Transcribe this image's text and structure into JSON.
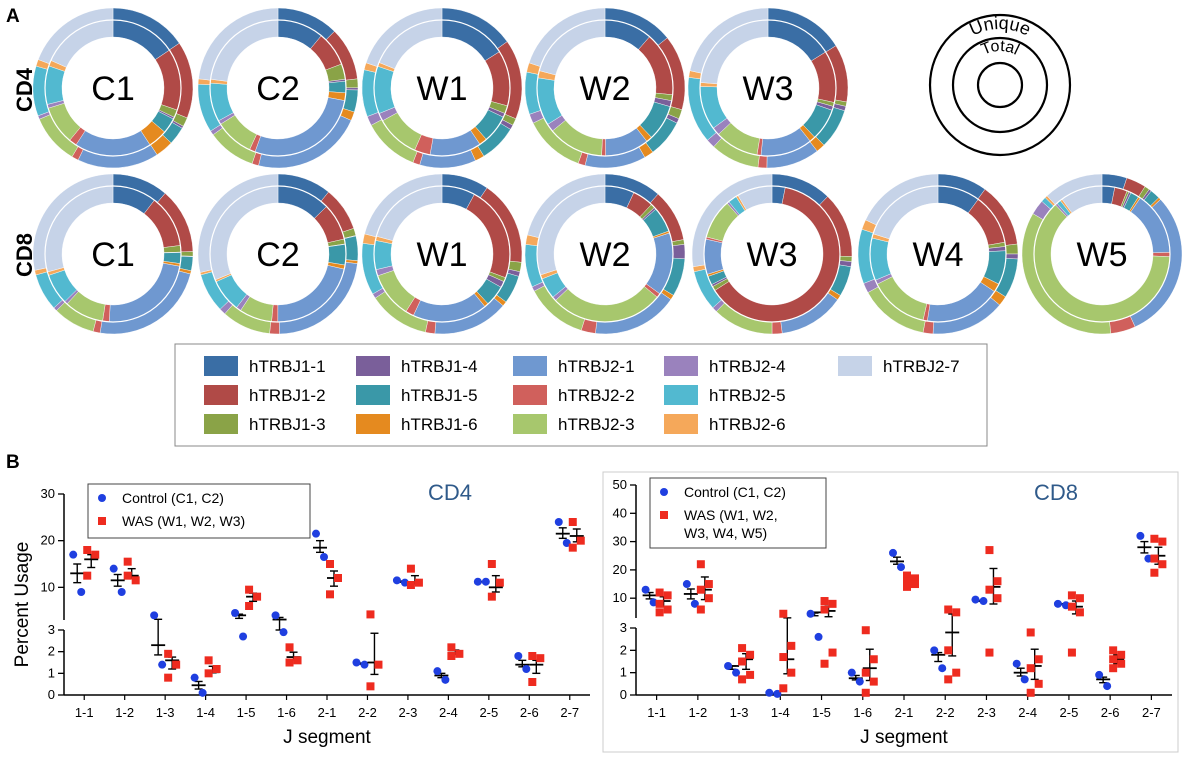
{
  "panel_labels": {
    "a": "A",
    "b": "B"
  },
  "row_labels": {
    "cd4": "CD4",
    "cd8": "CD8"
  },
  "key": {
    "outer": "Unique",
    "inner": "Total"
  },
  "colors": {
    "hTRBJ1-1": "#3a6ea5",
    "hTRBJ1-2": "#b04a47",
    "hTRBJ1-3": "#8aa347",
    "hTRBJ1-4": "#7a5f9a",
    "hTRBJ1-5": "#3a98a8",
    "hTRBJ1-6": "#e58a1f",
    "hTRBJ2-1": "#6f98d0",
    "hTRBJ2-2": "#d0605c",
    "hTRBJ2-3": "#a7c76d",
    "hTRBJ2-4": "#9a82bd",
    "hTRBJ2-5": "#52b9d0",
    "hTRBJ2-6": "#f5a85a",
    "hTRBJ2-7": "#c6d3e8"
  },
  "legend": {
    "columns": [
      [
        "hTRBJ1-1",
        "hTRBJ1-2",
        "hTRBJ1-3"
      ],
      [
        "hTRBJ1-4",
        "hTRBJ1-5",
        "hTRBJ1-6"
      ],
      [
        "hTRBJ2-1",
        "hTRBJ2-2",
        "hTRBJ2-3"
      ],
      [
        "hTRBJ2-4",
        "hTRBJ2-5",
        "hTRBJ2-6"
      ],
      [
        "hTRBJ2-7"
      ]
    ]
  },
  "chart_data": [
    {
      "type": "pie",
      "subtype": "nested-donut",
      "title": "CD4",
      "rings": [
        "Unique (outer)",
        "Total (inner)"
      ],
      "categories": [
        "hTRBJ1-1",
        "hTRBJ1-2",
        "hTRBJ1-3",
        "hTRBJ1-4",
        "hTRBJ1-5",
        "hTRBJ1-6",
        "hTRBJ2-1",
        "hTRBJ2-2",
        "hTRBJ2-3",
        "hTRBJ2-4",
        "hTRBJ2-5",
        "hTRBJ2-6",
        "hTRBJ2-7"
      ],
      "samples": [
        {
          "name": "C1",
          "outer": [
            17,
            17,
            2,
            0.5,
            4,
            4,
            18,
            1.5,
            11,
            0.8,
            11,
            1.5,
            21
          ],
          "inner": [
            17,
            16,
            2,
            0.5,
            4,
            5,
            20,
            2,
            10,
            1,
            10,
            1.5,
            20
          ]
        },
        {
          "name": "C2",
          "outer": [
            14,
            12,
            2,
            0.5,
            5,
            2,
            25,
            1.5,
            11,
            1,
            11,
            1.2,
            26
          ],
          "inner": [
            12,
            9,
            4,
            0.5,
            3,
            2,
            30,
            1.5,
            10,
            1,
            10,
            1,
            25
          ]
        },
        {
          "name": "W1",
          "outer": [
            16,
            17,
            1.5,
            1,
            8,
            2,
            12,
            1.5,
            12,
            2,
            10,
            1.5,
            21
          ],
          "inner": [
            17,
            14,
            2,
            1,
            7,
            2,
            13,
            4,
            11,
            2,
            12,
            1,
            20
          ]
        },
        {
          "name": "W2",
          "outer": [
            15,
            16,
            2,
            1,
            8,
            2,
            13,
            1.5,
            13,
            2,
            9,
            2,
            21
          ],
          "inner": [
            12,
            16,
            1.5,
            1.5,
            9,
            1.5,
            11,
            1,
            14,
            2,
            12,
            1.8,
            22
          ]
        },
        {
          "name": "W3",
          "outer": [
            18,
            13,
            1,
            1,
            9,
            2,
            12,
            2,
            11,
            2,
            15,
            1.5,
            24
          ],
          "inner": [
            17,
            13,
            1,
            1,
            8,
            1.5,
            13,
            1,
            11,
            2,
            11,
            1,
            25
          ]
        }
      ]
    },
    {
      "type": "pie",
      "subtype": "nested-donut",
      "title": "CD8",
      "rings": [
        "Unique (outer)",
        "Total (inner)"
      ],
      "categories": [
        "hTRBJ1-1",
        "hTRBJ1-2",
        "hTRBJ1-3",
        "hTRBJ1-4",
        "hTRBJ1-5",
        "hTRBJ1-6",
        "hTRBJ2-1",
        "hTRBJ2-2",
        "hTRBJ2-3",
        "hTRBJ2-4",
        "hTRBJ2-5",
        "hTRBJ2-6",
        "hTRBJ2-7"
      ],
      "samples": [
        {
          "name": "C1",
          "outer": [
            12,
            14,
            1,
            0.1,
            3,
            0.7,
            25,
            1.5,
            9,
            0.8,
            8,
            1,
            30
          ],
          "inner": [
            10,
            12,
            1.5,
            0.1,
            2.5,
            0.6,
            22,
            1.5,
            9,
            0.7,
            7,
            0.8,
            28
          ]
        },
        {
          "name": "C2",
          "outer": [
            11,
            9,
            1.5,
            0.1,
            5,
            0.6,
            23,
            2,
            10,
            1.3,
            8,
            0.5,
            29
          ],
          "inner": [
            13,
            9,
            1.2,
            0.1,
            5,
            1,
            22,
            1.5,
            8,
            1.2,
            8,
            0.5,
            32
          ]
        },
        {
          "name": "W1",
          "outer": [
            10,
            18,
            2,
            1,
            6,
            1,
            16,
            2,
            13,
            1,
            11,
            2,
            22
          ],
          "inner": [
            8,
            23,
            1,
            1.5,
            5,
            1,
            18,
            2,
            11,
            1.5,
            7,
            1,
            21
          ]
        },
        {
          "name": "W2",
          "outer": [
            12,
            11,
            1,
            3,
            8,
            1,
            18,
            3,
            13,
            1,
            9,
            2,
            22
          ],
          "inner": [
            7,
            5,
            1,
            0.5,
            6,
            0.5,
            15,
            1,
            27,
            1,
            5,
            1,
            30
          ]
        },
        {
          "name": "W3",
          "outer": [
            12,
            13,
            1,
            1,
            6,
            1,
            13,
            2,
            12,
            1,
            8,
            1,
            27
          ],
          "inner": [
            3,
            60,
            1,
            0.5,
            2,
            0.5,
            8,
            0.5,
            9,
            0.5,
            2,
            0.5,
            8
          ]
        },
        {
          "name": "W4",
          "outer": [
            10,
            13,
            2,
            1,
            8,
            2,
            15,
            2,
            14,
            2,
            11,
            2,
            18
          ],
          "inner": [
            10,
            12,
            1,
            1,
            8,
            2,
            18,
            1,
            14,
            1,
            10,
            1,
            20
          ]
        },
        {
          "name": "W5",
          "outer": [
            5,
            4,
            1,
            0.5,
            2,
            0.5,
            30,
            5,
            35,
            3,
            1,
            0.5,
            12
          ],
          "inner": [
            3,
            3,
            0.5,
            0.5,
            2,
            0.5,
            15,
            1,
            62,
            0.5,
            1,
            0.5,
            10
          ]
        }
      ]
    },
    {
      "type": "scatter",
      "title": "CD4",
      "xlabel": "J segment",
      "ylabel": "Percent Usage",
      "ylim_lower": [
        0,
        3
      ],
      "ylim_upper": [
        0,
        30
      ],
      "lower_ticks": [
        0,
        1,
        2,
        3
      ],
      "upper_ticks": [
        10,
        20,
        30
      ],
      "categories": [
        "1-1",
        "1-2",
        "1-3",
        "1-4",
        "1-5",
        "1-6",
        "2-1",
        "2-2",
        "2-3",
        "2-4",
        "2-5",
        "2-6",
        "2-7"
      ],
      "series": [
        {
          "name": "Control (C1, C2)",
          "marker": "circle",
          "color": "#1f3fe0",
          "points": [
            [
              17,
              9
            ],
            [
              14,
              9
            ],
            [
              4,
              1.4
            ],
            [
              0.8,
              0.1
            ],
            [
              4.5,
              2.7
            ],
            [
              4,
              2.9
            ],
            [
              21.5,
              16.5
            ],
            [
              1.5,
              1.4
            ],
            [
              11.5,
              11
            ],
            [
              1.1,
              0.7
            ],
            [
              11.2,
              11.2
            ],
            [
              1.8,
              1.2
            ],
            [
              24,
              19.5
            ]
          ],
          "mean": [
            13,
            11.5,
            2.3,
            0.45,
            4,
            3.1,
            18.5,
            1.45,
            11.2,
            0.9,
            11.2,
            1.4,
            21.5
          ]
        },
        {
          "name": "WAS (W1, W2, W3)",
          "marker": "square",
          "color": "#ee2b1f",
          "points": [
            [
              18,
              17,
              12.5
            ],
            [
              15.5,
              11.5,
              12.5
            ],
            [
              1.9,
              1.4,
              0.8
            ],
            [
              1.6,
              1.2,
              1.0
            ],
            [
              9.5,
              8,
              6
            ],
            [
              2.2,
              1.6,
              1.5
            ],
            [
              15,
              12,
              8.5
            ],
            [
              4.2,
              1.4,
              0.4
            ],
            [
              14,
              11,
              10.5
            ],
            [
              2.2,
              1.9,
              1.8
            ],
            [
              15,
              11,
              8
            ],
            [
              1.8,
              1.7,
              0.6
            ],
            [
              24,
              20,
              18.5
            ]
          ],
          "mean": [
            16,
            12.5,
            1.6,
            1.05,
            8,
            1.75,
            12,
            1.5,
            11,
            1.95,
            10,
            1.4,
            21
          ]
        }
      ]
    },
    {
      "type": "scatter",
      "title": "CD8",
      "xlabel": "J segment",
      "ylabel": "",
      "ylim_lower": [
        0,
        3
      ],
      "ylim_upper": [
        0,
        50
      ],
      "lower_ticks": [
        0,
        1,
        2,
        3
      ],
      "upper_ticks": [
        10,
        20,
        30,
        40,
        50
      ],
      "categories": [
        "1-1",
        "1-2",
        "1-3",
        "1-4",
        "1-5",
        "1-6",
        "2-1",
        "2-2",
        "2-3",
        "2-4",
        "2-5",
        "2-6",
        "2-7"
      ],
      "series": [
        {
          "name": "Control (C1, C2)",
          "marker": "circle",
          "color": "#1f3fe0",
          "points": [
            [
              13,
              8.5
            ],
            [
              15,
              8
            ],
            [
              1.3,
              1.0
            ],
            [
              0.1,
              0.05
            ],
            [
              4.5,
              2.6
            ],
            [
              1.0,
              0.6
            ],
            [
              26,
              21
            ],
            [
              2.0,
              1.2
            ],
            [
              9.5,
              9
            ],
            [
              1.4,
              0.7
            ],
            [
              8,
              7.5
            ],
            [
              0.9,
              0.4
            ],
            [
              32,
              24
            ]
          ],
          "mean": [
            11,
            11.5,
            1.3,
            0.05,
            5,
            0.75,
            23,
            1.8,
            9,
            1.0,
            8,
            0.7,
            28
          ]
        },
        {
          "name": "WAS (W1, W2, W3, W4, W5)",
          "marker": "square",
          "color": "#ee2b1f",
          "points": [
            [
              12,
              11,
              8,
              6,
              5
            ],
            [
              22,
              15,
              13,
              10,
              6
            ],
            [
              2.1,
              1.8,
              1.5,
              0.9,
              0.7
            ],
            [
              4.5,
              2.2,
              1.7,
              1.0,
              0.3
            ],
            [
              9,
              8,
              6,
              1.9,
              1.4
            ],
            [
              2.9,
              1.6,
              1.0,
              0.6,
              0.1
            ],
            [
              18,
              17,
              16,
              15,
              14
            ],
            [
              6,
              5,
              2.0,
              1.0,
              0.7
            ],
            [
              27,
              16,
              13,
              10,
              1.9
            ],
            [
              2.8,
              1.6,
              1.2,
              0.5,
              0.1
            ],
            [
              11,
              10,
              7,
              5,
              1.9
            ],
            [
              2.0,
              1.8,
              1.6,
              1.4,
              1.2
            ],
            [
              31,
              30,
              24,
              22,
              19
            ]
          ],
          "mean": [
            9,
            13,
            1.6,
            1.6,
            5.5,
            1.2,
            17,
            2.8,
            14,
            1.3,
            7,
            1.6,
            25
          ]
        }
      ]
    }
  ]
}
